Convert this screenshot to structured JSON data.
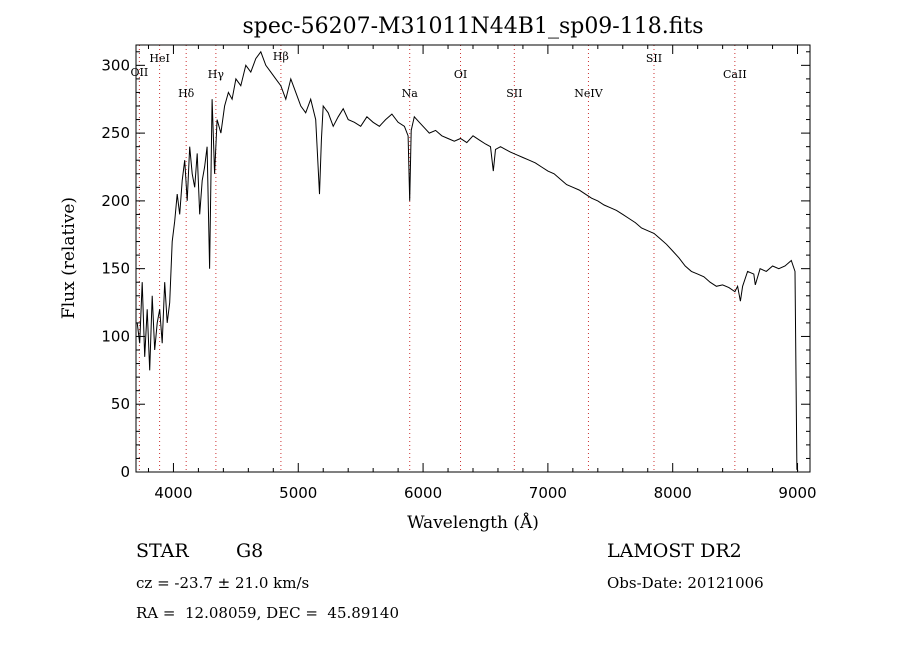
{
  "chart_data": {
    "type": "line",
    "title": "spec-56207-M31011N44B1_sp09-118.fits",
    "xlabel": "Wavelength (Å)",
    "ylabel": "Flux (relative)",
    "xlim": [
      3700,
      9100
    ],
    "ylim": [
      0,
      315
    ],
    "xticks": [
      4000,
      5000,
      6000,
      7000,
      8000,
      9000
    ],
    "yticks": [
      0,
      50,
      100,
      150,
      200,
      250,
      300
    ],
    "grid": false,
    "line_color": "#000000",
    "marker_color": "#cc3333",
    "spectral_lines": [
      {
        "name": "OII",
        "wavelength": 3727
      },
      {
        "name": "HeI",
        "wavelength": 3889
      },
      {
        "name": "Hδ",
        "wavelength": 4102
      },
      {
        "name": "Hγ",
        "wavelength": 4340
      },
      {
        "name": "Hβ",
        "wavelength": 4861
      },
      {
        "name": "Na",
        "wavelength": 5893
      },
      {
        "name": "OI",
        "wavelength": 6300
      },
      {
        "name": "SII",
        "wavelength": 6731
      },
      {
        "name": "NeIV",
        "wavelength": 7325
      },
      {
        "name": "SII",
        "wavelength": 7850
      },
      {
        "name": "CaII",
        "wavelength": 8498
      }
    ],
    "series": [
      {
        "x": [
          3710,
          3730,
          3750,
          3770,
          3790,
          3810,
          3830,
          3850,
          3870,
          3890,
          3910,
          3930,
          3950,
          3970,
          3990,
          4010,
          4030,
          4050,
          4070,
          4090,
          4110,
          4130,
          4150,
          4170,
          4190,
          4210,
          4230,
          4250,
          4270,
          4290,
          4310,
          4330,
          4350,
          4380,
          4410,
          4440,
          4470,
          4500,
          4540,
          4580,
          4620,
          4660,
          4700,
          4740,
          4780,
          4820,
          4860,
          4900,
          4940,
          4980,
          5020,
          5060,
          5100,
          5140,
          5170,
          5185,
          5200,
          5240,
          5280,
          5320,
          5360,
          5400,
          5450,
          5500,
          5550,
          5600,
          5650,
          5700,
          5750,
          5800,
          5850,
          5880,
          5893,
          5905,
          5930,
          5970,
          6010,
          6050,
          6100,
          6150,
          6200,
          6250,
          6300,
          6350,
          6400,
          6450,
          6500,
          6540,
          6563,
          6580,
          6620,
          6660,
          6700,
          6750,
          6800,
          6850,
          6900,
          6950,
          7000,
          7050,
          7100,
          7150,
          7200,
          7250,
          7300,
          7350,
          7400,
          7450,
          7500,
          7550,
          7600,
          7650,
          7700,
          7750,
          7800,
          7850,
          7900,
          7950,
          8000,
          8050,
          8100,
          8150,
          8200,
          8250,
          8300,
          8350,
          8400,
          8450,
          8498,
          8520,
          8542,
          8560,
          8600,
          8650,
          8662,
          8700,
          8750,
          8800,
          8850,
          8900,
          8950,
          8980,
          8995,
          9005
        ],
        "y": [
          110,
          95,
          140,
          85,
          120,
          75,
          130,
          90,
          110,
          120,
          95,
          140,
          110,
          125,
          170,
          185,
          205,
          190,
          215,
          230,
          200,
          240,
          220,
          210,
          235,
          190,
          215,
          225,
          240,
          150,
          275,
          220,
          260,
          250,
          270,
          280,
          275,
          290,
          285,
          300,
          295,
          305,
          310,
          300,
          295,
          290,
          285,
          275,
          290,
          280,
          270,
          265,
          275,
          260,
          205,
          245,
          270,
          265,
          255,
          262,
          268,
          260,
          258,
          255,
          262,
          258,
          255,
          260,
          264,
          258,
          255,
          248,
          200,
          252,
          262,
          258,
          254,
          250,
          252,
          248,
          246,
          244,
          246,
          243,
          248,
          245,
          242,
          240,
          222,
          238,
          240,
          238,
          236,
          234,
          232,
          230,
          228,
          225,
          222,
          220,
          216,
          212,
          210,
          208,
          205,
          202,
          200,
          197,
          195,
          193,
          190,
          187,
          184,
          180,
          178,
          176,
          172,
          168,
          163,
          158,
          152,
          148,
          146,
          144,
          140,
          137,
          138,
          136,
          133,
          137,
          126,
          137,
          148,
          146,
          138,
          150,
          148,
          152,
          150,
          152,
          156,
          148,
          2,
          1
        ]
      }
    ]
  },
  "info": {
    "object_class": "STAR",
    "subclass": "G8",
    "survey": "LAMOST DR2",
    "velocity": "cz = -23.7 ± 21.0 km/s",
    "obs_date": "Obs-Date: 20121006",
    "coords": "RA =  12.08059, DEC =  45.89140"
  }
}
